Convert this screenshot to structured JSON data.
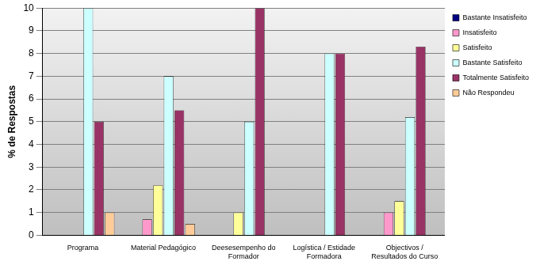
{
  "chart_data": {
    "type": "bar",
    "categories": [
      "Programa",
      "Material Pedagógico",
      "Deesesempenho do Formador",
      "Logística / Estidade Formadora",
      "Objectivos / Resultados do Curso"
    ],
    "y_label": "% de Respostas",
    "series": [
      {
        "name": "Bastante Insatisfeito",
        "color": "#000080",
        "values": [
          0,
          0,
          0,
          0,
          0
        ]
      },
      {
        "name": "Insatisfeito",
        "color": "#ff99cc",
        "values": [
          0,
          0.7,
          0,
          0,
          1
        ]
      },
      {
        "name": "Satisfeito",
        "color": "#ffff99",
        "values": [
          0,
          2.2,
          1,
          0,
          1.5
        ]
      },
      {
        "name": "Bastante Satisfeito",
        "color": "#ccffff",
        "values": [
          10,
          7,
          5,
          8,
          5.2
        ]
      },
      {
        "name": "Totalmente Satisfeito",
        "color": "#993366",
        "values": [
          5,
          5.5,
          10,
          8,
          8.3
        ]
      },
      {
        "name": "Não Respondeu",
        "color": "#ffcc99",
        "values": [
          1,
          0.5,
          0,
          0,
          0
        ]
      }
    ],
    "ylim": [
      0,
      10
    ],
    "yticks": [
      0,
      1,
      2,
      3,
      4,
      5,
      6,
      7,
      8,
      9,
      10
    ],
    "grid": true,
    "legend": "upper right"
  }
}
